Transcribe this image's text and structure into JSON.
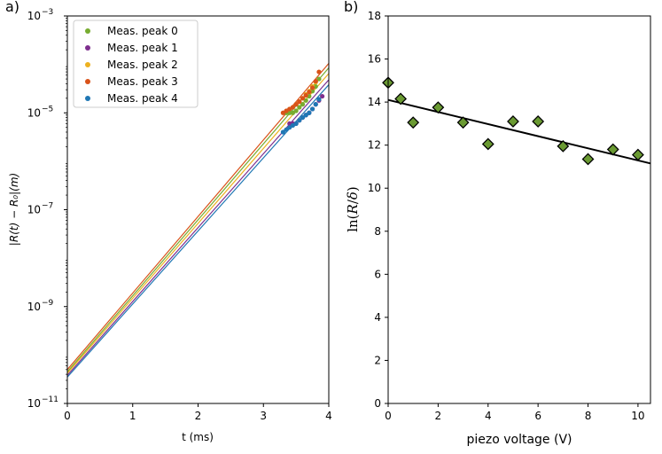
{
  "chart_data": [
    {
      "panel_label": "a)",
      "type": "scatter",
      "xlabel": "t (ms)",
      "ylabel": "|R(t) − R₀|(m)",
      "xlim": [
        0,
        4
      ],
      "ylim": [
        1e-11,
        0.001
      ],
      "yscale": "log",
      "xticks": [
        0,
        1,
        2,
        3,
        4
      ],
      "yticks": [
        {
          "value": 1e-11,
          "mant": "10",
          "exp": "−11"
        },
        {
          "value": 1e-09,
          "mant": "10",
          "exp": "−9"
        },
        {
          "value": 1e-07,
          "mant": "10",
          "exp": "−7"
        },
        {
          "value": 1e-05,
          "mant": "10",
          "exp": "−5"
        },
        {
          "value": 0.001,
          "mant": "10",
          "exp": "−3"
        }
      ],
      "grid": false,
      "legend_position": "top-left",
      "series": [
        {
          "name": "Meas. peak 0",
          "color": "#77ac30",
          "x": [
            3.35,
            3.4,
            3.45,
            3.5,
            3.55,
            3.6,
            3.65,
            3.7,
            3.75,
            3.8,
            3.85
          ],
          "y": [
            1e-05,
            1e-05,
            1e-05,
            1.1e-05,
            1.3e-05,
            1.5e-05,
            1.8e-05,
            2.2e-05,
            2.8e-05,
            3.5e-05,
            5e-05
          ],
          "fit": {
            "x": [
              0,
              4
            ],
            "y": [
              4.5e-11,
              8.5e-05
            ]
          }
        },
        {
          "name": "Meas. peak 1",
          "color": "#7e2f8e",
          "x": [
            3.4,
            3.45,
            3.5,
            3.55,
            3.6,
            3.65,
            3.7,
            3.75,
            3.8,
            3.85,
            3.9
          ],
          "y": [
            6e-06,
            6e-06,
            6e-06,
            7e-06,
            8e-06,
            9e-06,
            1e-05,
            1.2e-05,
            1.5e-05,
            1.8e-05,
            2.2e-05
          ],
          "fit": {
            "x": [
              0,
              4
            ],
            "y": [
              3.8e-11,
              4.8e-05
            ]
          }
        },
        {
          "name": "Meas. peak 2",
          "color": "#edb120",
          "x": [
            3.4,
            3.45,
            3.5,
            3.55,
            3.6,
            3.65,
            3.7,
            3.75,
            3.8
          ],
          "y": [
            1.2e-05,
            1.3e-05,
            1.5e-05,
            1.7e-05,
            2e-05,
            2.4e-05,
            2.8e-05,
            3.5e-05,
            4.3e-05
          ],
          "fit": {
            "x": [
              0,
              4
            ],
            "y": [
              4.2e-11,
              6.5e-05
            ]
          }
        },
        {
          "name": "Meas. peak 3",
          "color": "#d95319",
          "x": [
            3.3,
            3.35,
            3.4,
            3.45,
            3.5,
            3.55,
            3.6,
            3.65,
            3.7,
            3.75,
            3.8,
            3.85
          ],
          "y": [
            1e-05,
            1.1e-05,
            1.2e-05,
            1.3e-05,
            1.5e-05,
            1.7e-05,
            2e-05,
            2.3e-05,
            2.7e-05,
            3.3e-05,
            4.5e-05,
            7e-05
          ],
          "fit": {
            "x": [
              0,
              4
            ],
            "y": [
              5e-11,
              0.000105
            ]
          }
        },
        {
          "name": "Meas. peak 4",
          "color": "#1f77b4",
          "x": [
            3.3,
            3.35,
            3.4,
            3.45,
            3.5,
            3.55,
            3.6,
            3.65,
            3.7,
            3.75,
            3.8,
            3.85
          ],
          "y": [
            4e-06,
            4.5e-06,
            5e-06,
            5.5e-06,
            6e-06,
            7e-06,
            8e-06,
            9e-06,
            1e-05,
            1.2e-05,
            1.5e-05,
            1.9e-05
          ],
          "fit": {
            "x": [
              0,
              4
            ],
            "y": [
              3.5e-11,
              3.8e-05
            ]
          }
        }
      ]
    },
    {
      "panel_label": "b)",
      "type": "scatter",
      "xlabel": "piezo voltage (V)",
      "ylabel_main": "ln(",
      "ylabel_R": "R",
      "ylabel_slash": "/",
      "ylabel_delta": "δ",
      "ylabel_close": ")",
      "xlim": [
        0,
        10.5
      ],
      "ylim": [
        0,
        18
      ],
      "xticks": [
        0,
        2,
        4,
        6,
        8,
        10
      ],
      "yticks": [
        0,
        2,
        4,
        6,
        8,
        10,
        12,
        14,
        16,
        18
      ],
      "grid": false,
      "marker": "diamond",
      "marker_color": "#6a9a32",
      "points": {
        "x": [
          0,
          0.5,
          1,
          2,
          3,
          4,
          5,
          6,
          7,
          8,
          9,
          10
        ],
        "y": [
          14.9,
          14.15,
          13.05,
          13.75,
          13.05,
          12.05,
          13.1,
          13.1,
          11.95,
          11.35,
          11.8,
          11.55
        ]
      },
      "fit": {
        "x": [
          0,
          10.5
        ],
        "y": [
          14.1,
          11.15
        ]
      }
    }
  ]
}
